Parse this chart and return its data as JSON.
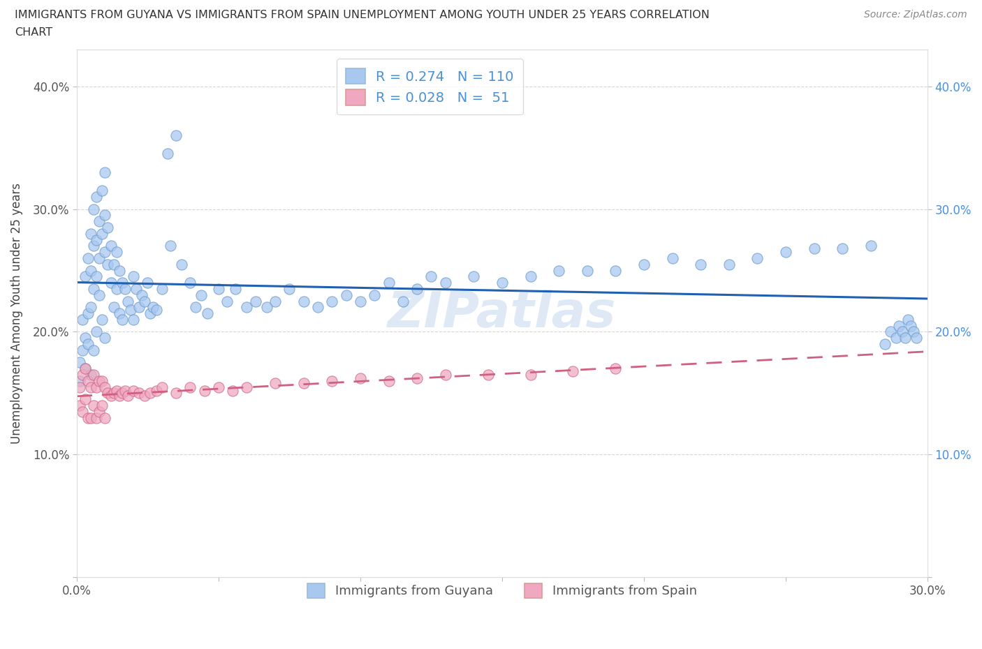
{
  "title_line1": "IMMIGRANTS FROM GUYANA VS IMMIGRANTS FROM SPAIN UNEMPLOYMENT AMONG YOUTH UNDER 25 YEARS CORRELATION",
  "title_line2": "CHART",
  "source": "Source: ZipAtlas.com",
  "ylabel": "Unemployment Among Youth under 25 years",
  "xlim": [
    0.0,
    0.3
  ],
  "ylim": [
    0.0,
    0.43
  ],
  "color_guyana": "#A8C8F0",
  "color_spain": "#F0A8C0",
  "line_color_guyana": "#2060B0",
  "line_color_spain": "#D06080",
  "R_guyana": 0.274,
  "N_guyana": 110,
  "R_spain": 0.028,
  "N_spain": 51,
  "watermark": "ZIPatlas",
  "marker_size": 120,
  "guyana_x": [
    0.001,
    0.001,
    0.002,
    0.002,
    0.003,
    0.003,
    0.003,
    0.004,
    0.004,
    0.004,
    0.005,
    0.005,
    0.005,
    0.005,
    0.006,
    0.006,
    0.006,
    0.006,
    0.007,
    0.007,
    0.007,
    0.007,
    0.008,
    0.008,
    0.008,
    0.009,
    0.009,
    0.009,
    0.01,
    0.01,
    0.01,
    0.01,
    0.011,
    0.011,
    0.012,
    0.012,
    0.013,
    0.013,
    0.014,
    0.014,
    0.015,
    0.015,
    0.016,
    0.016,
    0.017,
    0.018,
    0.019,
    0.02,
    0.02,
    0.021,
    0.022,
    0.023,
    0.024,
    0.025,
    0.026,
    0.027,
    0.028,
    0.03,
    0.032,
    0.033,
    0.035,
    0.037,
    0.04,
    0.042,
    0.044,
    0.046,
    0.05,
    0.053,
    0.056,
    0.06,
    0.063,
    0.067,
    0.07,
    0.075,
    0.08,
    0.085,
    0.09,
    0.095,
    0.1,
    0.105,
    0.11,
    0.115,
    0.12,
    0.125,
    0.13,
    0.14,
    0.15,
    0.16,
    0.17,
    0.18,
    0.19,
    0.2,
    0.21,
    0.22,
    0.23,
    0.24,
    0.25,
    0.26,
    0.27,
    0.28,
    0.285,
    0.287,
    0.289,
    0.29,
    0.291,
    0.292,
    0.293,
    0.294,
    0.295,
    0.296
  ],
  "guyana_y": [
    0.175,
    0.16,
    0.21,
    0.185,
    0.245,
    0.195,
    0.17,
    0.26,
    0.215,
    0.19,
    0.28,
    0.25,
    0.22,
    0.165,
    0.3,
    0.27,
    0.235,
    0.185,
    0.31,
    0.275,
    0.245,
    0.2,
    0.29,
    0.26,
    0.23,
    0.315,
    0.28,
    0.21,
    0.33,
    0.295,
    0.265,
    0.195,
    0.285,
    0.255,
    0.27,
    0.24,
    0.255,
    0.22,
    0.265,
    0.235,
    0.25,
    0.215,
    0.24,
    0.21,
    0.235,
    0.225,
    0.218,
    0.245,
    0.21,
    0.235,
    0.22,
    0.23,
    0.225,
    0.24,
    0.215,
    0.22,
    0.218,
    0.235,
    0.345,
    0.27,
    0.36,
    0.255,
    0.24,
    0.22,
    0.23,
    0.215,
    0.235,
    0.225,
    0.235,
    0.22,
    0.225,
    0.22,
    0.225,
    0.235,
    0.225,
    0.22,
    0.225,
    0.23,
    0.225,
    0.23,
    0.24,
    0.225,
    0.235,
    0.245,
    0.24,
    0.245,
    0.24,
    0.245,
    0.25,
    0.25,
    0.25,
    0.255,
    0.26,
    0.255,
    0.255,
    0.26,
    0.265,
    0.268,
    0.268,
    0.27,
    0.19,
    0.2,
    0.195,
    0.205,
    0.2,
    0.195,
    0.21,
    0.205,
    0.2,
    0.195
  ],
  "spain_x": [
    0.001,
    0.001,
    0.002,
    0.002,
    0.003,
    0.003,
    0.004,
    0.004,
    0.005,
    0.005,
    0.006,
    0.006,
    0.007,
    0.007,
    0.008,
    0.008,
    0.009,
    0.009,
    0.01,
    0.01,
    0.011,
    0.012,
    0.013,
    0.014,
    0.015,
    0.016,
    0.017,
    0.018,
    0.02,
    0.022,
    0.024,
    0.026,
    0.028,
    0.03,
    0.035,
    0.04,
    0.045,
    0.05,
    0.055,
    0.06,
    0.07,
    0.08,
    0.09,
    0.1,
    0.11,
    0.12,
    0.13,
    0.145,
    0.16,
    0.175,
    0.19
  ],
  "spain_y": [
    0.155,
    0.14,
    0.165,
    0.135,
    0.17,
    0.145,
    0.16,
    0.13,
    0.155,
    0.13,
    0.165,
    0.14,
    0.155,
    0.13,
    0.16,
    0.135,
    0.16,
    0.14,
    0.155,
    0.13,
    0.15,
    0.148,
    0.15,
    0.152,
    0.148,
    0.15,
    0.152,
    0.148,
    0.152,
    0.15,
    0.148,
    0.15,
    0.152,
    0.155,
    0.15,
    0.155,
    0.152,
    0.155,
    0.152,
    0.155,
    0.158,
    0.158,
    0.16,
    0.162,
    0.16,
    0.162,
    0.165,
    0.165,
    0.165,
    0.168,
    0.17
  ],
  "right_ytick_color": "#4A90D9",
  "left_ytick_color": "#555555",
  "grid_color": "#cccccc",
  "title_color": "#333333",
  "source_color": "#888888"
}
